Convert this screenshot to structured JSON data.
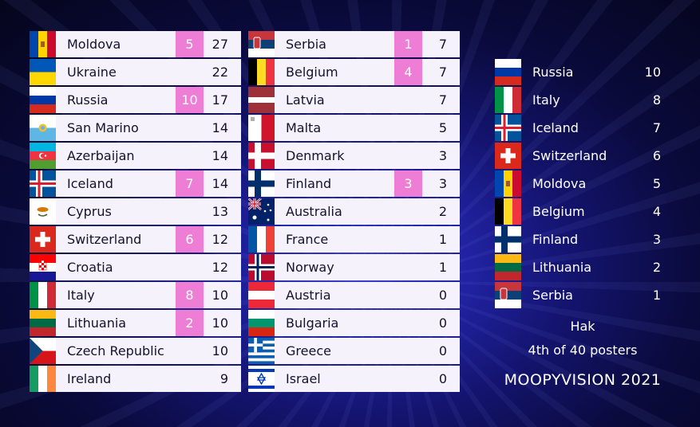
{
  "board": {
    "left": [
      {
        "country": "Moldova",
        "jury": "5",
        "total": "27",
        "flag": "moldova-flag"
      },
      {
        "country": "Ukraine",
        "jury": "",
        "total": "22",
        "flag": "ukraine-flag"
      },
      {
        "country": "Russia",
        "jury": "10",
        "total": "17",
        "flag": "russia-flag"
      },
      {
        "country": "San Marino",
        "jury": "",
        "total": "14",
        "flag": "san-marino-flag"
      },
      {
        "country": "Azerbaijan",
        "jury": "",
        "total": "14",
        "flag": "azerbaijan-flag"
      },
      {
        "country": "Iceland",
        "jury": "7",
        "total": "14",
        "flag": "iceland-flag"
      },
      {
        "country": "Cyprus",
        "jury": "",
        "total": "13",
        "flag": "cyprus-flag"
      },
      {
        "country": "Switzerland",
        "jury": "6",
        "total": "12",
        "flag": "switzerland-flag"
      },
      {
        "country": "Croatia",
        "jury": "",
        "total": "12",
        "flag": "croatia-flag"
      },
      {
        "country": "Italy",
        "jury": "8",
        "total": "10",
        "flag": "italy-flag"
      },
      {
        "country": "Lithuania",
        "jury": "2",
        "total": "10",
        "flag": "lithuania-flag"
      },
      {
        "country": "Czech Republic",
        "jury": "",
        "total": "10",
        "flag": "czech-flag"
      },
      {
        "country": "Ireland",
        "jury": "",
        "total": "9",
        "flag": "ireland-flag"
      }
    ],
    "middle": [
      {
        "country": "Serbia",
        "jury": "1",
        "total": "7",
        "flag": "serbia-flag"
      },
      {
        "country": "Belgium",
        "jury": "4",
        "total": "7",
        "flag": "belgium-flag"
      },
      {
        "country": "Latvia",
        "jury": "",
        "total": "7",
        "flag": "latvia-flag"
      },
      {
        "country": "Malta",
        "jury": "",
        "total": "5",
        "flag": "malta-flag"
      },
      {
        "country": "Denmark",
        "jury": "",
        "total": "3",
        "flag": "denmark-flag"
      },
      {
        "country": "Finland",
        "jury": "3",
        "total": "3",
        "flag": "finland-flag"
      },
      {
        "country": "Australia",
        "jury": "",
        "total": "2",
        "flag": "australia-flag"
      },
      {
        "country": "France",
        "jury": "",
        "total": "1",
        "flag": "france-flag"
      },
      {
        "country": "Norway",
        "jury": "",
        "total": "1",
        "flag": "norway-flag"
      },
      {
        "country": "Austria",
        "jury": "",
        "total": "0",
        "flag": "austria-flag"
      },
      {
        "country": "Bulgaria",
        "jury": "",
        "total": "0",
        "flag": "bulgaria-flag"
      },
      {
        "country": "Greece",
        "jury": "",
        "total": "0",
        "flag": "greece-flag"
      },
      {
        "country": "Israel",
        "jury": "",
        "total": "0",
        "flag": "israel-flag"
      }
    ]
  },
  "voter": {
    "points": [
      {
        "country": "Russia",
        "points": "10",
        "flag": "russia-flag"
      },
      {
        "country": "Italy",
        "points": "8",
        "flag": "italy-flag"
      },
      {
        "country": "Iceland",
        "points": "7",
        "flag": "iceland-flag"
      },
      {
        "country": "Switzerland",
        "points": "6",
        "flag": "switzerland-flag"
      },
      {
        "country": "Moldova",
        "points": "5",
        "flag": "moldova-flag"
      },
      {
        "country": "Belgium",
        "points": "4",
        "flag": "belgium-flag"
      },
      {
        "country": "Finland",
        "points": "3",
        "flag": "finland-flag"
      },
      {
        "country": "Lithuania",
        "points": "2",
        "flag": "lithuania-flag"
      },
      {
        "country": "Serbia",
        "points": "1",
        "flag": "serbia-flag"
      }
    ],
    "name": "Hak",
    "rank": "4th of 40 posters",
    "brand": "MOOPYVISION 2021"
  },
  "colors": {
    "jury_highlight": "#ee7ed5",
    "row_background": "#f6f2fb",
    "text_dark": "#13132a",
    "text_light": "#ffffff"
  }
}
